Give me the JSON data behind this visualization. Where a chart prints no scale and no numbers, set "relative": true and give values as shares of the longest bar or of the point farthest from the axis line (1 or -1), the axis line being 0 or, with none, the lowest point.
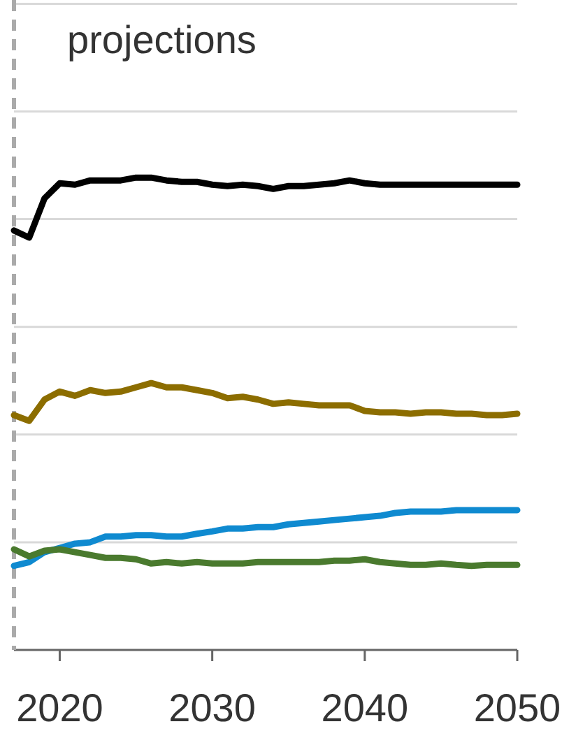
{
  "chart_data": {
    "type": "line",
    "relative": true,
    "x": [
      2017,
      2018,
      2019,
      2020,
      2021,
      2022,
      2023,
      2024,
      2025,
      2026,
      2027,
      2028,
      2029,
      2030,
      2031,
      2032,
      2033,
      2034,
      2035,
      2036,
      2037,
      2038,
      2039,
      2040,
      2041,
      2042,
      2043,
      2044,
      2045,
      2046,
      2047,
      2048,
      2049,
      2050
    ],
    "series": [
      {
        "color": "#000000",
        "values": [
          0.888,
          0.873,
          0.956,
          0.988,
          0.985,
          0.994,
          0.994,
          0.994,
          1.0,
          1.0,
          0.994,
          0.991,
          0.991,
          0.985,
          0.982,
          0.985,
          0.982,
          0.976,
          0.982,
          0.982,
          0.985,
          0.988,
          0.994,
          0.988,
          0.985,
          0.985,
          0.985,
          0.985,
          0.985,
          0.985,
          0.985,
          0.985,
          0.985,
          0.985
        ]
      },
      {
        "color": "#8c6d00",
        "values": [
          0.497,
          0.485,
          0.53,
          0.547,
          0.538,
          0.55,
          0.544,
          0.547,
          0.556,
          0.565,
          0.556,
          0.556,
          0.55,
          0.544,
          0.533,
          0.536,
          0.53,
          0.521,
          0.524,
          0.521,
          0.518,
          0.518,
          0.518,
          0.506,
          0.503,
          0.503,
          0.5,
          0.503,
          0.503,
          0.5,
          0.5,
          0.497,
          0.497,
          0.5
        ]
      },
      {
        "color": "#0f8ad0",
        "values": [
          0.178,
          0.186,
          0.207,
          0.216,
          0.225,
          0.228,
          0.24,
          0.24,
          0.243,
          0.243,
          0.24,
          0.24,
          0.246,
          0.251,
          0.257,
          0.257,
          0.26,
          0.26,
          0.266,
          0.269,
          0.272,
          0.275,
          0.278,
          0.281,
          0.284,
          0.29,
          0.293,
          0.293,
          0.293,
          0.296,
          0.296,
          0.296,
          0.296,
          0.296
        ]
      },
      {
        "color": "#4a7a2e",
        "values": [
          0.213,
          0.198,
          0.21,
          0.213,
          0.207,
          0.201,
          0.195,
          0.195,
          0.192,
          0.183,
          0.186,
          0.183,
          0.186,
          0.183,
          0.183,
          0.183,
          0.186,
          0.186,
          0.186,
          0.186,
          0.186,
          0.189,
          0.189,
          0.192,
          0.186,
          0.183,
          0.18,
          0.18,
          0.183,
          0.18,
          0.178,
          0.18,
          0.18,
          0.18
        ]
      }
    ],
    "xlim": [
      2017,
      2050
    ],
    "xticks": [
      2020,
      2030,
      2040,
      2050
    ],
    "grid": "y",
    "tick_labels": "x",
    "line_style": "solid",
    "ref_lines": [
      {
        "axis": "x",
        "value": 2017,
        "label": "projections",
        "color": "#aaaaaa",
        "line_style": "dashed"
      }
    ]
  }
}
